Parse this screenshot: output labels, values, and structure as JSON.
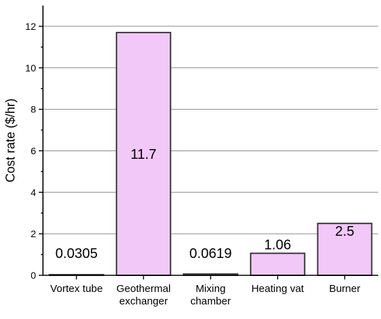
{
  "chart_data": {
    "type": "bar",
    "categories": [
      [
        "Vortex tube"
      ],
      [
        "Geothermal",
        "exchanger"
      ],
      [
        "Mixing",
        "chamber"
      ],
      [
        "Heating vat"
      ],
      [
        "Burner"
      ]
    ],
    "values": [
      0.0305,
      11.7,
      0.0619,
      1.06,
      2.5
    ],
    "data_labels": [
      "0.0305",
      "11.7",
      "0.0619",
      "1.06",
      "2.5"
    ],
    "title": "",
    "xlabel": "",
    "ylabel": "Cost rate ($/hr)",
    "ylim": [
      0,
      13
    ],
    "yticks": [
      0,
      2,
      4,
      6,
      8,
      10,
      12
    ],
    "grid": true,
    "bar_color": "#f2c8f8",
    "bar_edge_color": "#3a3a3a"
  }
}
